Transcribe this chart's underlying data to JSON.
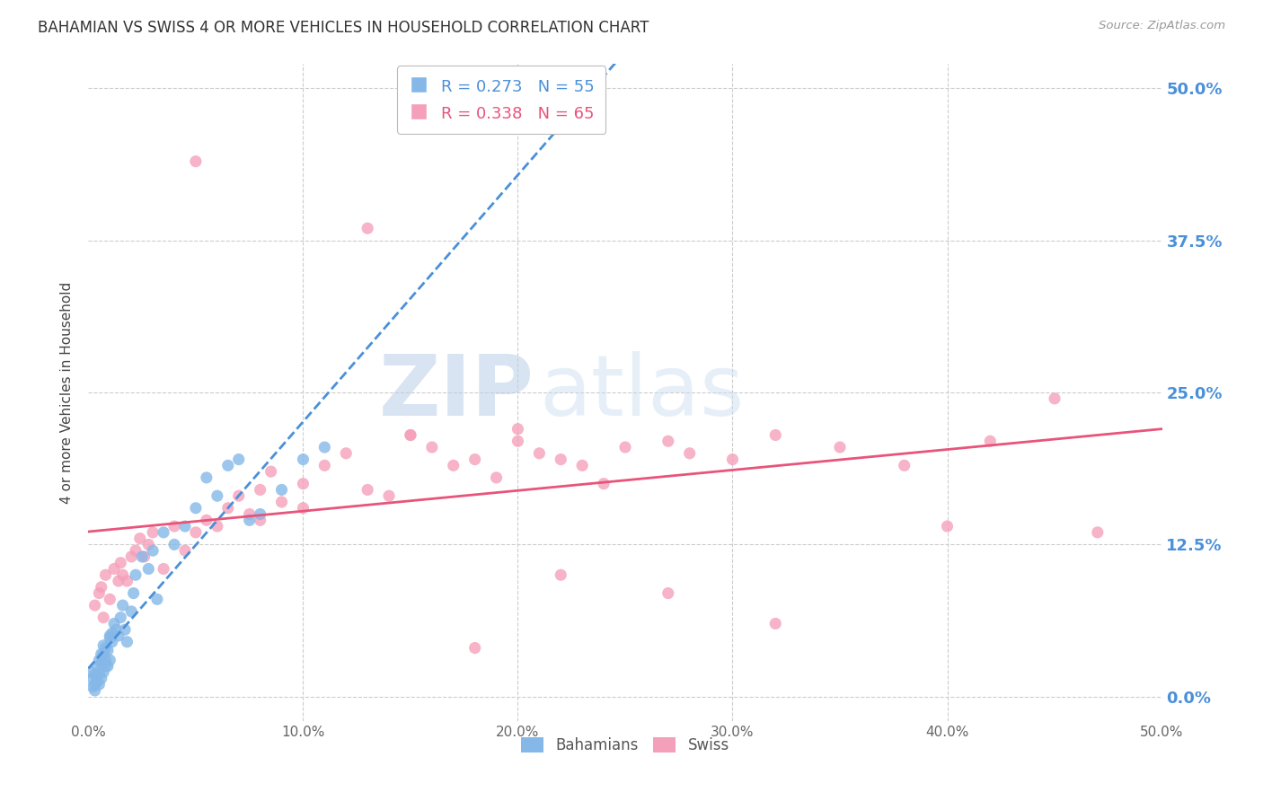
{
  "title": "BAHAMIAN VS SWISS 4 OR MORE VEHICLES IN HOUSEHOLD CORRELATION CHART",
  "source": "Source: ZipAtlas.com",
  "ylabel": "4 or more Vehicles in Household",
  "xlim": [
    0.0,
    50.0
  ],
  "ylim": [
    -2.0,
    52.0
  ],
  "yticks": [
    0.0,
    12.5,
    25.0,
    37.5,
    50.0
  ],
  "xticks": [
    0.0,
    10.0,
    20.0,
    30.0,
    40.0,
    50.0
  ],
  "bahamian_color": "#85b8e8",
  "swiss_color": "#f5a0ba",
  "bahamian_line_color": "#4a90d9",
  "swiss_line_color": "#e8547a",
  "legend_R_bahamian": "R = 0.273",
  "legend_N_bahamian": "N = 55",
  "legend_R_swiss": "R = 0.338",
  "legend_N_swiss": "N = 65",
  "watermark_zip": "ZIP",
  "watermark_atlas": "atlas",
  "bahamian_x": [
    0.1,
    0.2,
    0.3,
    0.3,
    0.4,
    0.4,
    0.5,
    0.5,
    0.6,
    0.6,
    0.7,
    0.7,
    0.8,
    0.8,
    0.9,
    1.0,
    1.0,
    1.1,
    1.2,
    1.3,
    1.4,
    1.5,
    1.6,
    1.7,
    1.8,
    2.0,
    2.1,
    2.2,
    2.5,
    2.8,
    3.0,
    3.2,
    3.5,
    4.0,
    4.5,
    5.0,
    5.5,
    6.0,
    6.5,
    7.0,
    7.5,
    8.0,
    9.0,
    10.0,
    11.0,
    0.2,
    0.3,
    0.4,
    0.5,
    0.6,
    0.7,
    0.8,
    0.9,
    1.0,
    1.1
  ],
  "bahamian_y": [
    2.0,
    1.5,
    1.8,
    0.5,
    2.5,
    1.2,
    3.0,
    1.0,
    2.8,
    1.5,
    3.5,
    2.0,
    4.0,
    2.5,
    3.8,
    5.0,
    3.0,
    4.5,
    6.0,
    5.5,
    5.0,
    6.5,
    7.5,
    5.5,
    4.5,
    7.0,
    8.5,
    10.0,
    11.5,
    10.5,
    12.0,
    8.0,
    13.5,
    12.5,
    14.0,
    15.5,
    18.0,
    16.5,
    19.0,
    19.5,
    14.5,
    15.0,
    17.0,
    19.5,
    20.5,
    0.8,
    1.0,
    1.5,
    2.0,
    3.5,
    4.2,
    3.0,
    2.5,
    4.8,
    5.2
  ],
  "swiss_x": [
    0.3,
    0.5,
    0.6,
    0.7,
    0.8,
    1.0,
    1.2,
    1.4,
    1.5,
    1.6,
    1.8,
    2.0,
    2.2,
    2.4,
    2.6,
    2.8,
    3.0,
    3.5,
    4.0,
    4.5,
    5.0,
    5.5,
    6.0,
    6.5,
    7.0,
    7.5,
    8.0,
    8.5,
    9.0,
    10.0,
    11.0,
    12.0,
    13.0,
    14.0,
    15.0,
    16.0,
    17.0,
    18.0,
    19.0,
    20.0,
    21.0,
    22.0,
    23.0,
    24.0,
    25.0,
    27.0,
    28.0,
    30.0,
    32.0,
    35.0,
    38.0,
    40.0,
    42.0,
    45.0,
    47.0,
    20.0,
    15.0,
    10.0,
    8.0,
    5.0,
    13.0,
    18.0,
    22.0,
    27.0,
    32.0
  ],
  "swiss_y": [
    7.5,
    8.5,
    9.0,
    6.5,
    10.0,
    8.0,
    10.5,
    9.5,
    11.0,
    10.0,
    9.5,
    11.5,
    12.0,
    13.0,
    11.5,
    12.5,
    13.5,
    10.5,
    14.0,
    12.0,
    13.5,
    14.5,
    14.0,
    15.5,
    16.5,
    15.0,
    17.0,
    18.5,
    16.0,
    17.5,
    19.0,
    20.0,
    17.0,
    16.5,
    21.5,
    20.5,
    19.0,
    19.5,
    18.0,
    21.0,
    20.0,
    19.5,
    19.0,
    17.5,
    20.5,
    21.0,
    20.0,
    19.5,
    21.5,
    20.5,
    19.0,
    14.0,
    21.0,
    24.5,
    13.5,
    22.0,
    21.5,
    15.5,
    14.5,
    44.0,
    38.5,
    4.0,
    10.0,
    8.5,
    6.0
  ]
}
